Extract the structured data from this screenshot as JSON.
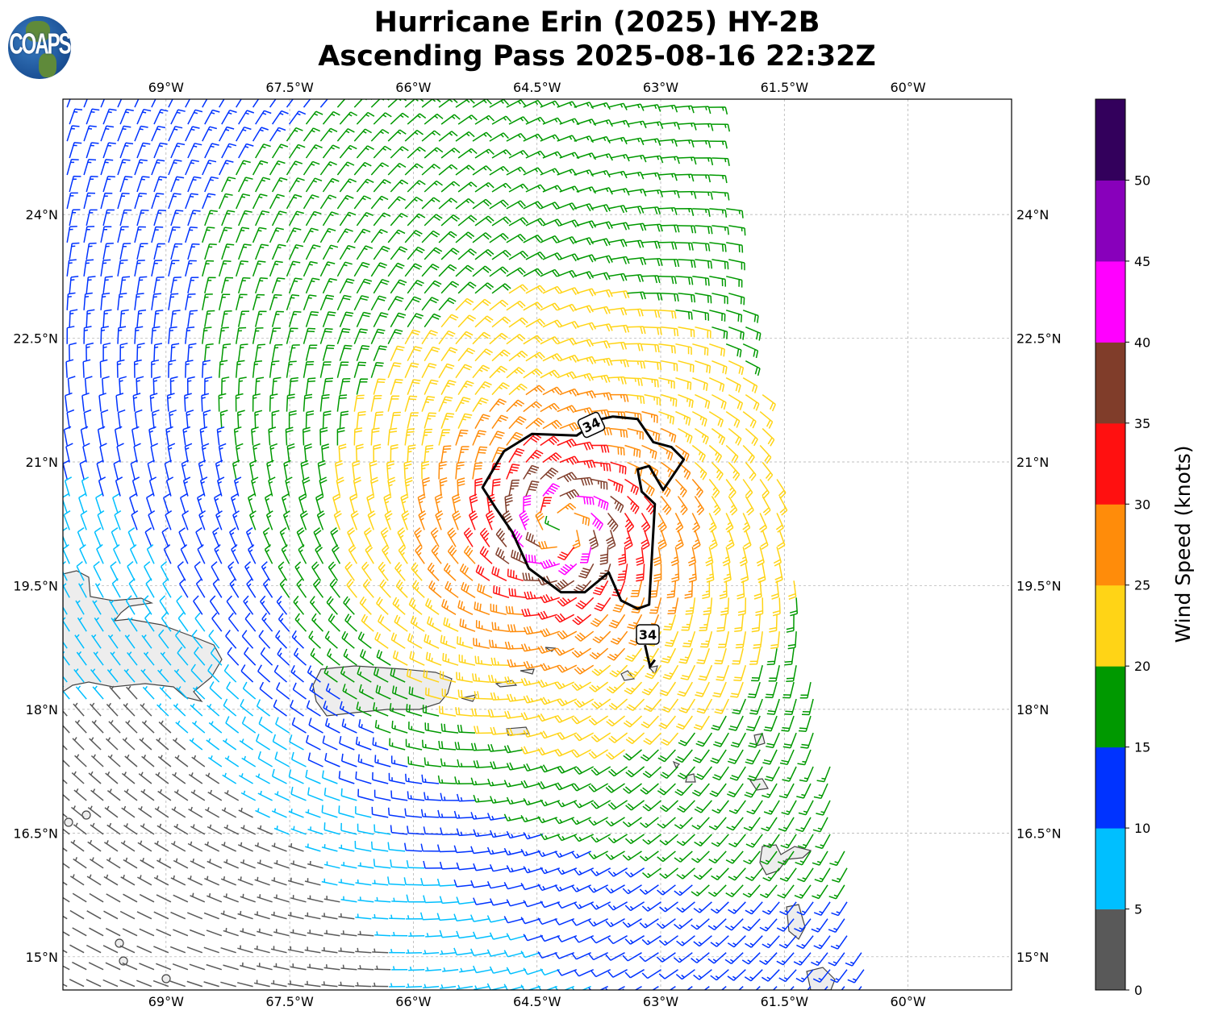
{
  "title": {
    "line1": "Hurricane Erin (2025) HY-2B",
    "line2": "Ascending Pass 2025-08-16 22:32Z"
  },
  "logo": {
    "text": "COAPS"
  },
  "chart_data": {
    "type": "wind-barb-map",
    "lon_range": [
      -70.25,
      -58.75
    ],
    "lat_range": [
      14.6,
      25.4
    ],
    "lon_ticks": [
      {
        "value": -69,
        "label": "69°W"
      },
      {
        "value": -67.5,
        "label": "67.5°W"
      },
      {
        "value": -66,
        "label": "66°W"
      },
      {
        "value": -64.5,
        "label": "64.5°W"
      },
      {
        "value": -63,
        "label": "63°W"
      },
      {
        "value": -61.5,
        "label": "61.5°W"
      },
      {
        "value": -60,
        "label": "60°W"
      }
    ],
    "lat_ticks": [
      {
        "value": 24,
        "label": "24°N"
      },
      {
        "value": 22.5,
        "label": "22.5°N"
      },
      {
        "value": 21,
        "label": "21°N"
      },
      {
        "value": 19.5,
        "label": "19.5°N"
      },
      {
        "value": 18,
        "label": "18°N"
      },
      {
        "value": 16.5,
        "label": "16.5°N"
      },
      {
        "value": 15,
        "label": "15°N"
      }
    ],
    "grid": true,
    "storm_center": {
      "lon": -64.2,
      "lat": 20.2
    },
    "swath_east_edge": [
      {
        "lat": 25.3,
        "lon": -62.4
      },
      {
        "lat": 14.6,
        "lon": -60.45
      }
    ],
    "contour_34kt": {
      "label": "34",
      "main": [
        [
          -64.02,
          21.32
        ],
        [
          -64.56,
          21.34
        ],
        [
          -64.9,
          21.13
        ],
        [
          -65.16,
          20.69
        ],
        [
          -65.0,
          20.44
        ],
        [
          -64.8,
          20.15
        ],
        [
          -64.6,
          19.71
        ],
        [
          -64.21,
          19.42
        ],
        [
          -63.92,
          19.42
        ],
        [
          -63.63,
          19.66
        ],
        [
          -63.48,
          19.32
        ],
        [
          -63.28,
          19.22
        ],
        [
          -63.14,
          19.27
        ],
        [
          -63.07,
          20.49
        ],
        [
          -63.23,
          20.64
        ],
        [
          -63.28,
          20.91
        ],
        [
          -63.14,
          20.95
        ],
        [
          -62.97,
          20.66
        ],
        [
          -62.72,
          21.03
        ],
        [
          -62.87,
          21.18
        ],
        [
          -63.09,
          21.24
        ],
        [
          -63.28,
          21.52
        ],
        [
          -63.58,
          21.55
        ],
        [
          -63.72,
          21.52
        ]
      ],
      "secondary": [
        [
          -63.19,
          18.78
        ],
        [
          -63.13,
          18.52
        ],
        [
          -63.07,
          18.6
        ]
      ]
    },
    "colorbar": {
      "label": "Wind Speed (knots)",
      "bounds": [
        0,
        5,
        10,
        15,
        20,
        25,
        30,
        35,
        40,
        45,
        50,
        55
      ],
      "tick_labels": [
        "0",
        "5",
        "10",
        "15",
        "20",
        "25",
        "30",
        "35",
        "40",
        "45",
        "50"
      ],
      "colors": [
        "#595959",
        "#00bfff",
        "#0033ff",
        "#009900",
        "#ffd416",
        "#ff8c0a",
        "#ff1010",
        "#803d2a",
        "#ff00ff",
        "#8800bb",
        "#33005c"
      ]
    }
  }
}
